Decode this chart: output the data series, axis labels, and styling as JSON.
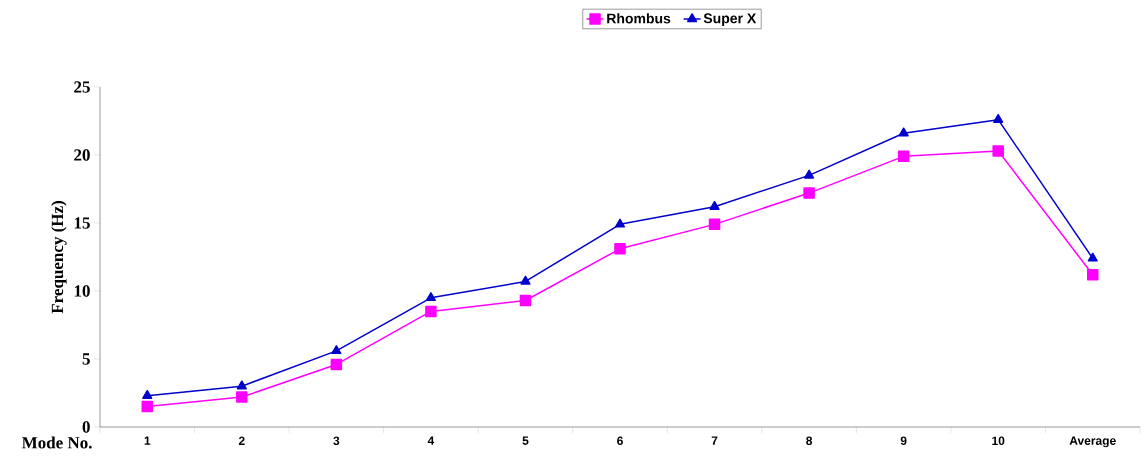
{
  "chart_data": {
    "type": "line",
    "xlabel": "Mode No.",
    "ylabel": "Frequency (Hz)",
    "categories": [
      "1",
      "2",
      "3",
      "4",
      "5",
      "6",
      "7",
      "8",
      "9",
      "10",
      "Average"
    ],
    "series": [
      {
        "name": "Rhombus",
        "color": "#ff00ff",
        "marker": "square",
        "values": [
          1.5,
          2.2,
          4.6,
          8.5,
          9.3,
          13.1,
          14.9,
          17.2,
          19.9,
          20.3,
          11.2
        ]
      },
      {
        "name": "Super X",
        "color": "#0000cc",
        "marker": "triangle",
        "values": [
          2.3,
          3.0,
          5.6,
          9.5,
          10.7,
          14.9,
          16.2,
          18.5,
          21.6,
          22.6,
          12.4
        ]
      }
    ],
    "ylim": [
      0,
      25
    ],
    "yticks": [
      0,
      5,
      10,
      15,
      20,
      25
    ],
    "legend": "top",
    "line_style": "solid"
  }
}
